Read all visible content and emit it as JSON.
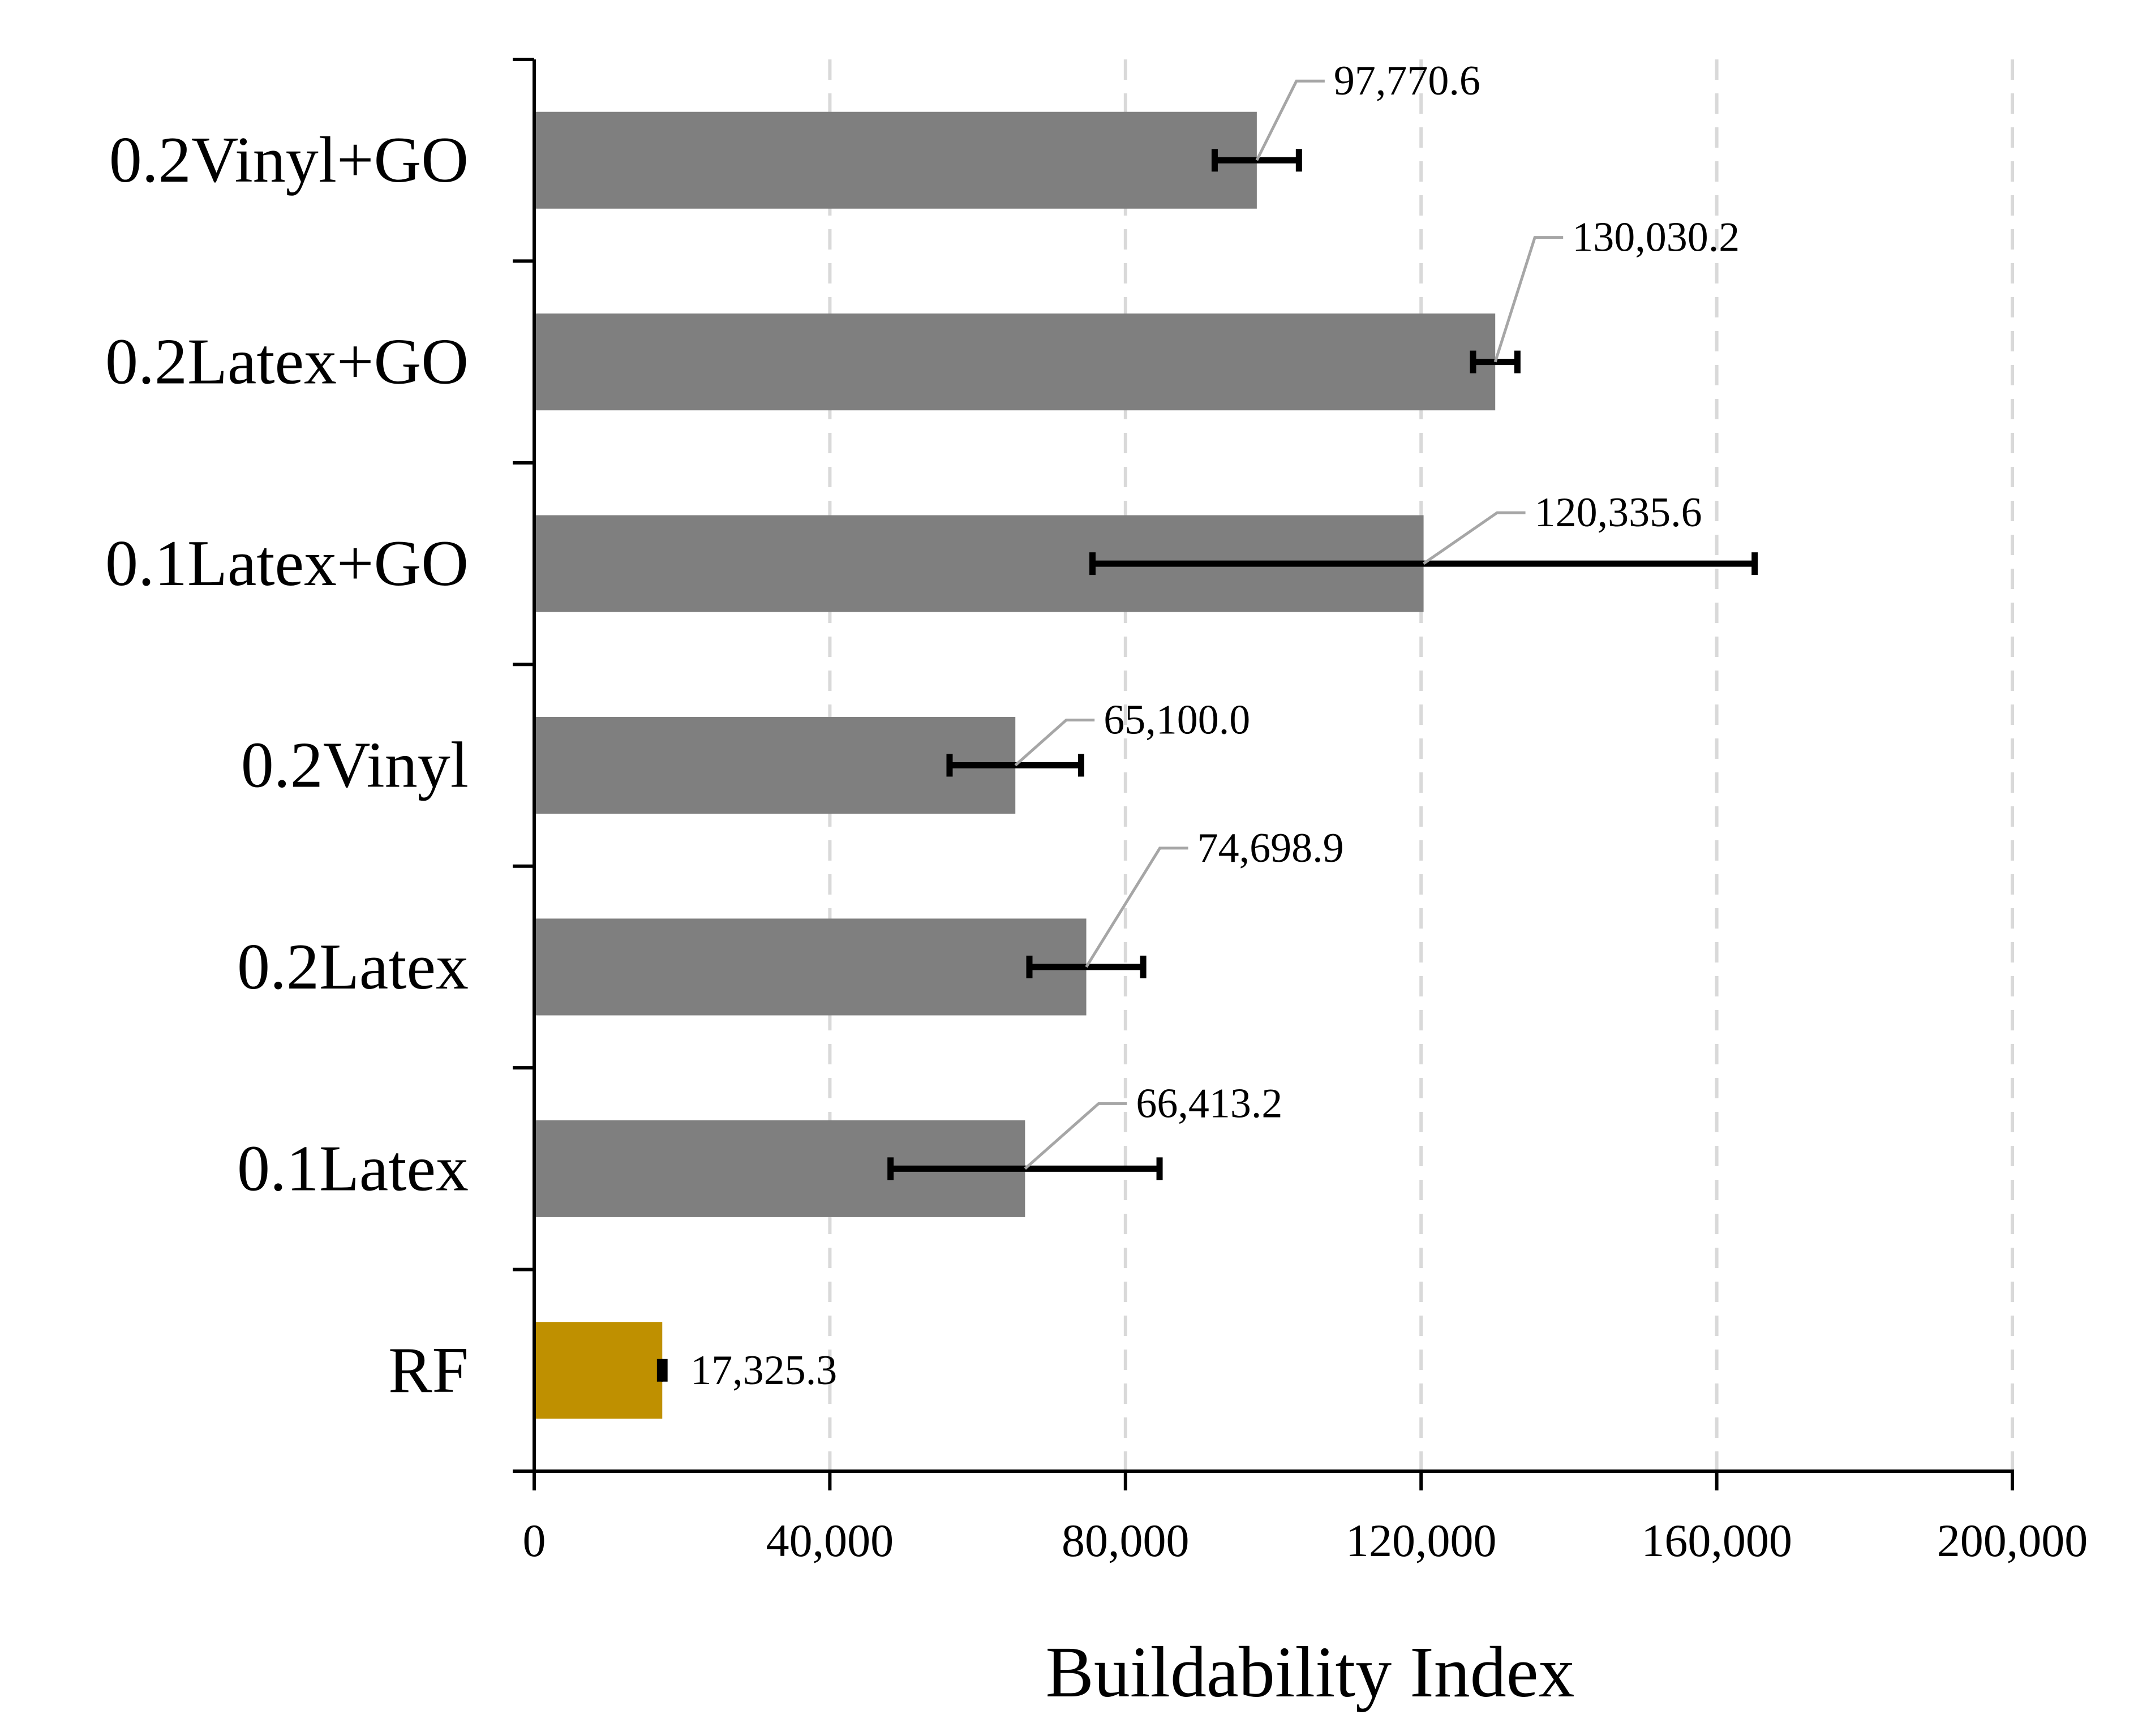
{
  "chart_data": {
    "type": "bar",
    "orientation": "horizontal",
    "categories": [
      "0.2Vinyl+GO",
      "0.2Latex+GO",
      "0.1Latex+GO",
      "0.2Vinyl",
      "0.2Latex",
      "0.1Latex",
      "RF"
    ],
    "values": [
      97770.6,
      130030.2,
      120335.6,
      65100.0,
      74698.9,
      66413.2,
      17325.3
    ],
    "value_labels": [
      "97,770.6",
      "130,030.2",
      "120,335.6",
      "65,100.0",
      "74,698.9",
      "66,413.2",
      "17,325.3"
    ],
    "error": [
      5700,
      3000,
      44800,
      8900,
      7700,
      18200,
      300
    ],
    "bar_colors": [
      "#7f7f7f",
      "#7f7f7f",
      "#7f7f7f",
      "#7f7f7f",
      "#7f7f7f",
      "#7f7f7f",
      "#bf9000"
    ],
    "xlabel": "Buildability Index",
    "ylabel": "",
    "xlim": [
      0,
      200000
    ],
    "xticks": [
      0,
      40000,
      80000,
      120000,
      160000,
      200000
    ],
    "xtick_labels": [
      "0",
      "40,000",
      "80,000",
      "120,000",
      "160,000",
      "200,000"
    ],
    "grid": "vertical dashed",
    "legend": "none"
  }
}
